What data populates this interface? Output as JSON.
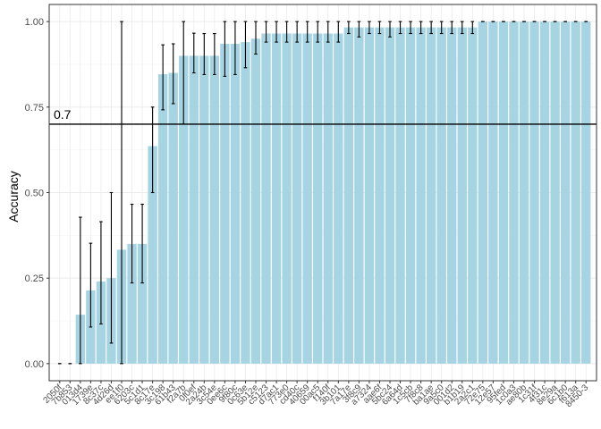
{
  "chart_data": {
    "type": "bar",
    "title": "",
    "xlabel": "",
    "ylabel": "Accuracy",
    "ylim": [
      0,
      1
    ],
    "yticks": [
      "0.00",
      "0.25",
      "0.50",
      "0.75",
      "1.00"
    ],
    "ytick_values": [
      0,
      0.25,
      0.5,
      0.75,
      1
    ],
    "grid": true,
    "reference_line": {
      "value": 0.7,
      "label": "0.7"
    },
    "colors": {
      "bar": "#a6d4e3",
      "error": "#000000",
      "grid": "#ebebeb",
      "panel_border": "#333333"
    },
    "categories": [
      "2050f",
      "7b853",
      "013d4",
      "1739e",
      "8c37c",
      "4d26d",
      "ee1f0",
      "6203c",
      "5c1d1",
      "8c17e",
      "3c198",
      "61b43",
      "f2a7b",
      "0f0ef",
      "2a24b",
      "3c54e",
      "0ee6c",
      "9f80c",
      "0c63e",
      "5b12e",
      "c5123",
      "d7ac1",
      "773e0",
      "cd40c",
      "40659",
      "00ac5",
      "f140f",
      "3b101",
      "7a17e",
      "3f8c9",
      "a7324",
      "aae6f",
      "5bc24",
      "6a64d",
      "1c5cb",
      "7f8c8",
      "ba1ae",
      "9a5c0",
      "001d2",
      "b1b19",
      "2a2c1",
      "72e75",
      "12e57",
      "95fed",
      "1c0a3",
      "ae80b",
      "1c31f",
      "4f31c",
      "8e29a",
      "6c1b0",
      "f613a",
      "8450-3"
    ],
    "x_labels_visible": [
      "2050f",
      "7b853",
      "013d4",
      "1739e",
      "8c37c",
      "4d26d",
      "ee1f0",
      "6203c",
      "5c1d1",
      "8c17e",
      "3c198",
      "61b43",
      "f2a7b",
      "0f0ef",
      "2a24b",
      "3c54e",
      "0ee6c",
      "9f80c",
      "0c63e",
      "5b12e",
      "c5123",
      "d7ac1",
      "773e0",
      "cd40c",
      "40659",
      "00ac5",
      "f140f",
      "3b101",
      "7a17e",
      "3f8c9",
      "a7324",
      "aae6f",
      "5bc24",
      "6a64d",
      "1c5cb",
      "7f8c8",
      "ba1ae",
      "9a5c0",
      "001d2",
      "b1b19",
      "2a2c1",
      "72e75",
      "12e57",
      "95fed",
      "1c0a3",
      "ae80b",
      "1c31f",
      "4f31c",
      "8e29a",
      "6c1b0",
      "f613a",
      "8450-3"
    ],
    "values": [
      0,
      0,
      0.143,
      0.214,
      0.24,
      0.25,
      0.333,
      0.35,
      0.35,
      0.636,
      0.846,
      0.85,
      0.9,
      0.9,
      0.9,
      0.9,
      0.935,
      0.935,
      0.94,
      0.95,
      0.965,
      0.965,
      0.965,
      0.965,
      0.965,
      0.965,
      0.965,
      0.965,
      0.983,
      0.983,
      0.983,
      0.983,
      0.983,
      0.983,
      0.983,
      0.983,
      0.983,
      0.983,
      0.983,
      0.983,
      0.983,
      1,
      1,
      1,
      1,
      1,
      1,
      1,
      1,
      1,
      1,
      1
    ],
    "error_low": [
      0,
      0,
      0,
      0.107,
      0.116,
      0.06,
      0,
      0.236,
      0.236,
      0.5,
      0.742,
      0.76,
      0.7,
      0.85,
      0.845,
      0.845,
      0.84,
      0.845,
      0.865,
      0.905,
      0.94,
      0.94,
      0.94,
      0.94,
      0.94,
      0.94,
      0.94,
      0.94,
      0.965,
      0.955,
      0.965,
      0.965,
      0.955,
      0.965,
      0.965,
      0.965,
      0.965,
      0.965,
      0.965,
      0.965,
      0.965,
      1,
      1,
      1,
      1,
      1,
      1,
      1,
      1,
      1,
      1,
      1
    ],
    "error_high": [
      0,
      0,
      0.428,
      0.352,
      0.415,
      0.5,
      1,
      0.466,
      0.466,
      0.75,
      0.932,
      0.935,
      1,
      0.966,
      0.965,
      0.965,
      1,
      1,
      1,
      1,
      1,
      1,
      1,
      1,
      1,
      1,
      1,
      1,
      1,
      1,
      1,
      1,
      1,
      1,
      1,
      1,
      1,
      1,
      1,
      1,
      1,
      1,
      1,
      1,
      1,
      1,
      1,
      1,
      1,
      1,
      1,
      1
    ]
  }
}
